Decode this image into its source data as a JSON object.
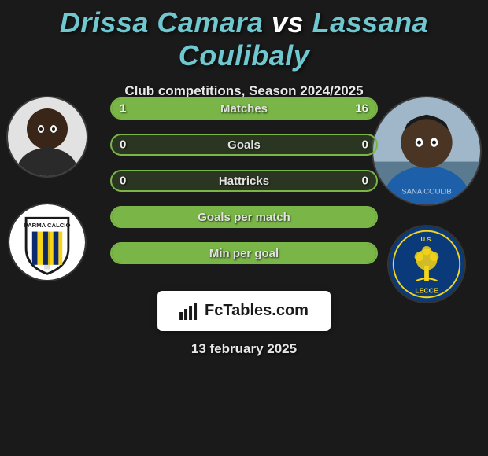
{
  "title": {
    "player1": "Drissa Camara",
    "vs": "vs",
    "player2": "Lassana Coulibaly"
  },
  "subtitle": "Club competitions, Season 2024/2025",
  "date": "13 february 2025",
  "brand": "FcTables.com",
  "colors": {
    "accent": "#79b547",
    "teal": "#6fc7cf",
    "background": "#1a1a1a",
    "badge_bg": "#ffffff"
  },
  "players": {
    "left": {
      "name": "Drissa Camara",
      "club": "Parma Calcio",
      "club_colors": {
        "primary": "#0d2a6e",
        "secondary": "#f5d419",
        "bg": "#ffffff"
      }
    },
    "right": {
      "name": "Lassana Coulibaly",
      "club": "U.S. Lecce",
      "club_colors": {
        "primary": "#0b3a7a",
        "secondary": "#f5d419",
        "bg": "#0b3a7a"
      }
    }
  },
  "stats": {
    "bar_outline": "#79b547",
    "bar_fill": "#79b547",
    "rows": [
      {
        "label": "Matches",
        "left": "1",
        "right": "16",
        "fill_left_pct": 6,
        "fill_right_pct": 94
      },
      {
        "label": "Goals",
        "left": "0",
        "right": "0",
        "fill_left_pct": 0,
        "fill_right_pct": 0
      },
      {
        "label": "Hattricks",
        "left": "0",
        "right": "0",
        "fill_left_pct": 0,
        "fill_right_pct": 0
      },
      {
        "label": "Goals per match",
        "left": "",
        "right": "",
        "fill_left_pct": 100,
        "fill_right_pct": 0
      },
      {
        "label": "Min per goal",
        "left": "",
        "right": "",
        "fill_left_pct": 100,
        "fill_right_pct": 0
      }
    ]
  }
}
